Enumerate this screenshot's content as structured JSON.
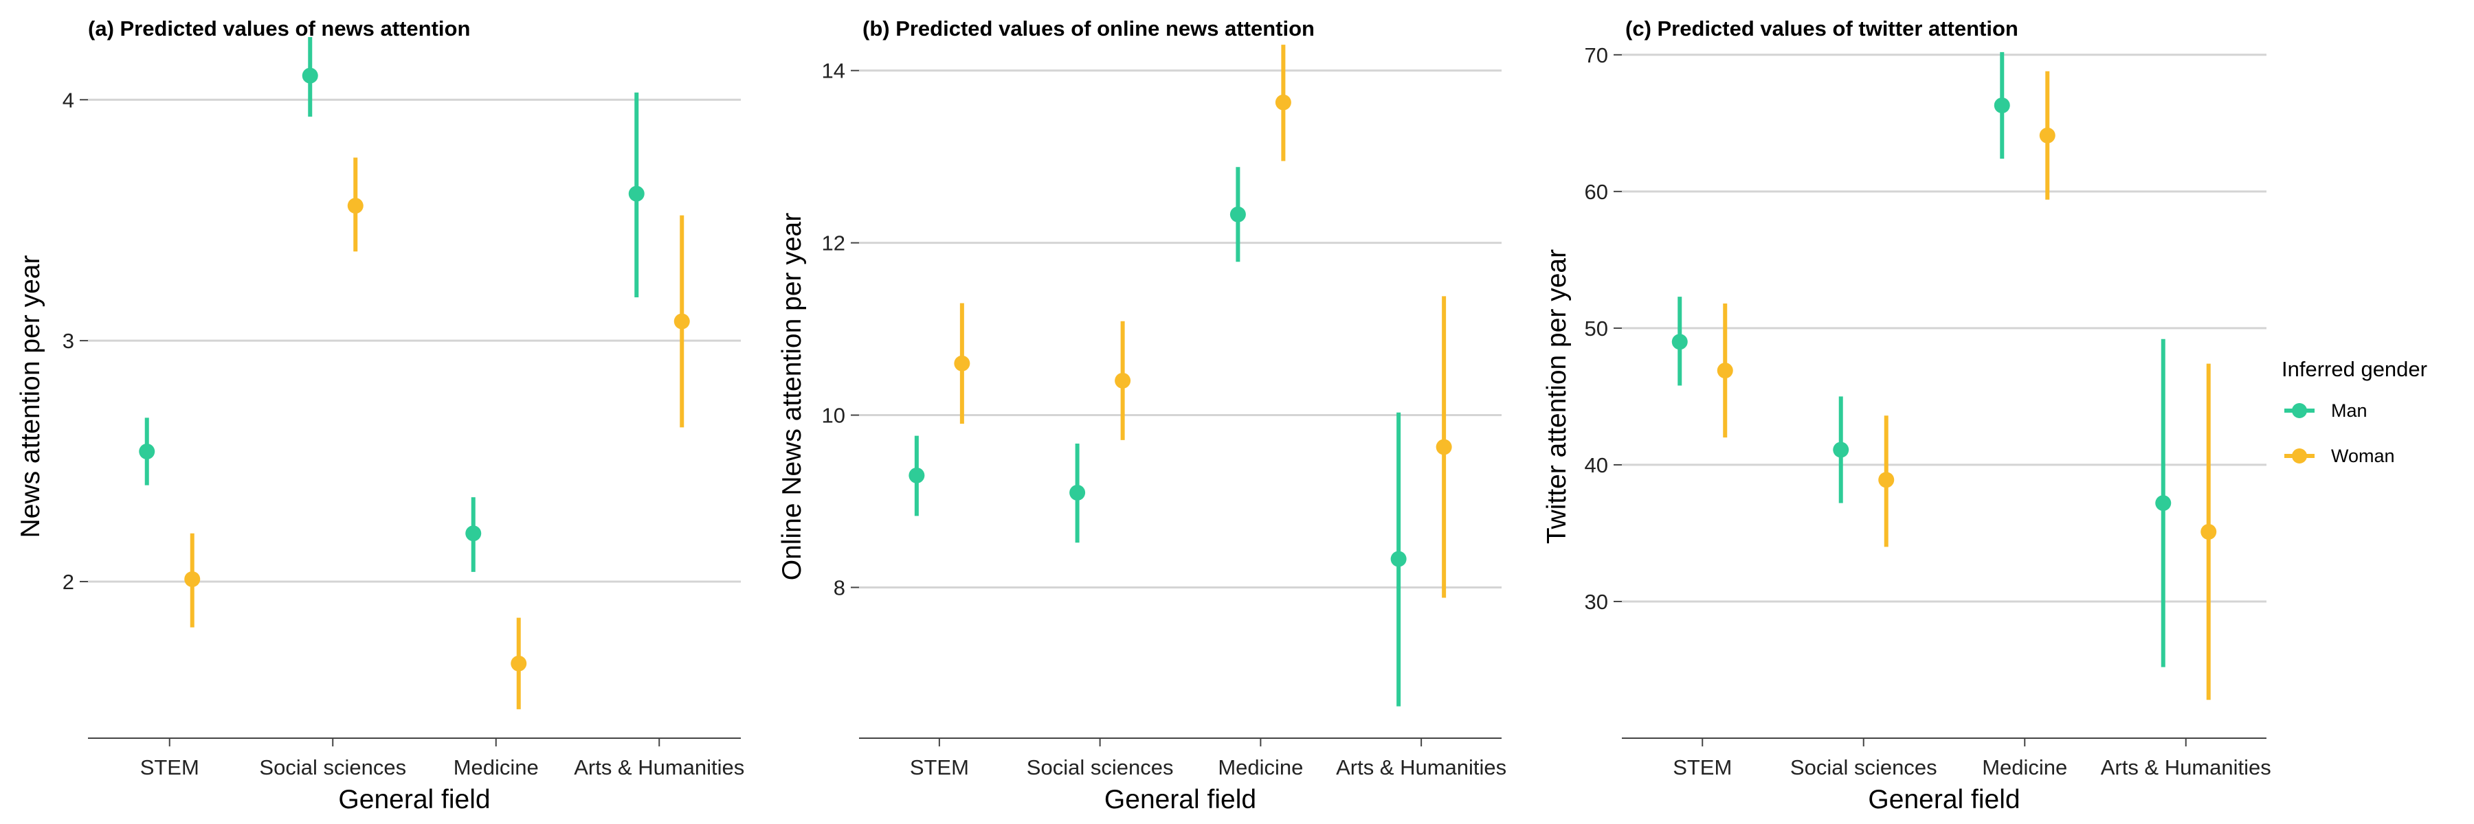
{
  "legend": {
    "title": "Inferred gender",
    "items": [
      {
        "label": "Man",
        "color": "#2ecc97"
      },
      {
        "label": "Woman",
        "color": "#f9bb28"
      }
    ]
  },
  "chart_data": [
    {
      "type": "errorbar",
      "title": "(a) Predicted values of news attention",
      "xlabel": "General field",
      "ylabel": "News attention per year",
      "categories": [
        "STEM",
        "Social sciences",
        "Medicine",
        "Arts & Humanities"
      ],
      "yticks": [
        2,
        3,
        4
      ],
      "ylim": [
        1.35,
        4.3
      ],
      "series": [
        {
          "name": "Man",
          "color": "#2ecc97",
          "values": [
            2.54,
            4.1,
            2.2,
            3.61
          ],
          "lower": [
            2.4,
            3.93,
            2.04,
            3.18
          ],
          "upper": [
            2.68,
            4.26,
            2.35,
            4.03
          ]
        },
        {
          "name": "Woman",
          "color": "#f9bb28",
          "values": [
            2.01,
            3.56,
            1.66,
            3.08
          ],
          "lower": [
            1.81,
            3.37,
            1.47,
            2.64
          ],
          "upper": [
            2.2,
            3.76,
            1.85,
            3.52
          ]
        }
      ]
    },
    {
      "type": "errorbar",
      "title": "(b) Predicted values of online news attention",
      "xlabel": "General field",
      "ylabel": "Online News attention per year",
      "categories": [
        "STEM",
        "Social sciences",
        "Medicine",
        "Arts & Humanities"
      ],
      "yticks": [
        8,
        10,
        12,
        14
      ],
      "ylim": [
        6.25,
        14.5
      ],
      "series": [
        {
          "name": "Man",
          "color": "#2ecc97",
          "values": [
            9.3,
            9.1,
            12.33,
            8.33
          ],
          "lower": [
            8.83,
            8.52,
            11.78,
            6.62
          ],
          "upper": [
            9.76,
            9.67,
            12.88,
            10.03
          ]
        },
        {
          "name": "Woman",
          "color": "#f9bb28",
          "values": [
            10.6,
            10.4,
            13.63,
            9.63
          ],
          "lower": [
            9.9,
            9.71,
            12.95,
            7.88
          ],
          "upper": [
            11.3,
            11.09,
            14.3,
            11.38
          ]
        }
      ]
    },
    {
      "type": "errorbar",
      "title": "(c) Predicted values of twitter attention",
      "xlabel": "General field",
      "ylabel": "Twitter attention per year",
      "categories": [
        "STEM",
        "Social sciences",
        "Medicine",
        "Arts & Humanities"
      ],
      "yticks": [
        30,
        40,
        50,
        60,
        70
      ],
      "ylim": [
        20,
        72
      ],
      "series": [
        {
          "name": "Man",
          "color": "#2ecc97",
          "values": [
            49,
            41.1,
            66.3,
            37.2
          ],
          "lower": [
            45.8,
            37.2,
            62.4,
            25.2
          ],
          "upper": [
            52.3,
            45,
            70.2,
            49.2
          ]
        },
        {
          "name": "Woman",
          "color": "#f9bb28",
          "values": [
            46.9,
            38.9,
            64.1,
            35.1
          ],
          "lower": [
            42,
            34,
            59.4,
            22.8
          ],
          "upper": [
            51.8,
            43.6,
            68.8,
            47.4
          ]
        }
      ]
    }
  ]
}
